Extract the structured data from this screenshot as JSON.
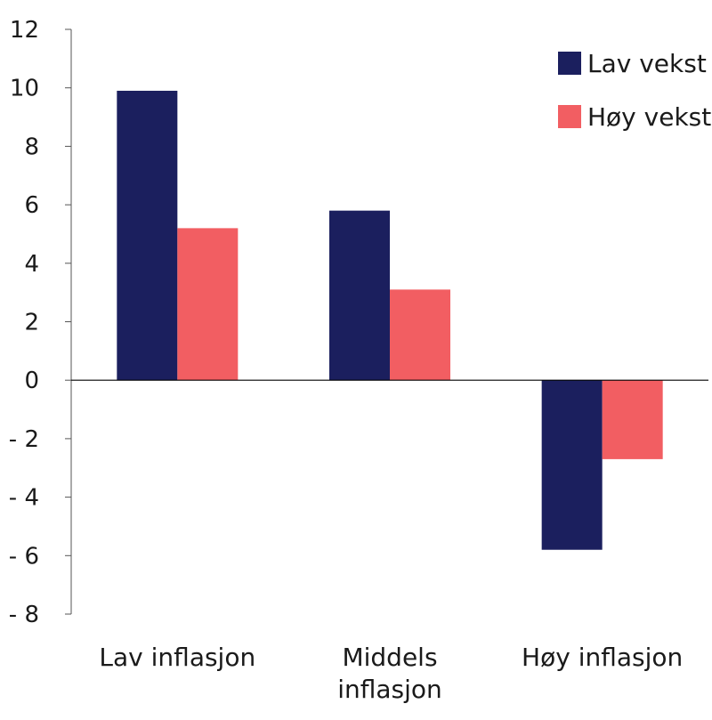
{
  "chart_data": {
    "type": "bar",
    "title": "",
    "xlabel": "",
    "ylabel": "",
    "categories": [
      "Lav inflasjon",
      "Middels inflasjon",
      "Høy inflasjon"
    ],
    "category_lines": [
      [
        "Lav inflasjon"
      ],
      [
        "Middels",
        "inflasjon"
      ],
      [
        "Høy inflasjon"
      ]
    ],
    "series": [
      {
        "name": "Lav vekst",
        "color": "#1b1f5e",
        "values": [
          9.9,
          5.8,
          -5.8
        ]
      },
      {
        "name": "Høy vekst",
        "color": "#f25e62",
        "values": [
          5.2,
          3.1,
          -2.7
        ]
      }
    ],
    "ylim": [
      -8,
      12
    ],
    "yticks": [
      12,
      10,
      8,
      6,
      4,
      2,
      0,
      -2,
      -4,
      -6,
      -8
    ],
    "ytick_labels": [
      "12",
      "10",
      "8",
      "6",
      "4",
      "2",
      "0",
      "- 2",
      "- 4",
      "- 6",
      "- 8"
    ],
    "grid": false,
    "legend_position": "top-right"
  }
}
